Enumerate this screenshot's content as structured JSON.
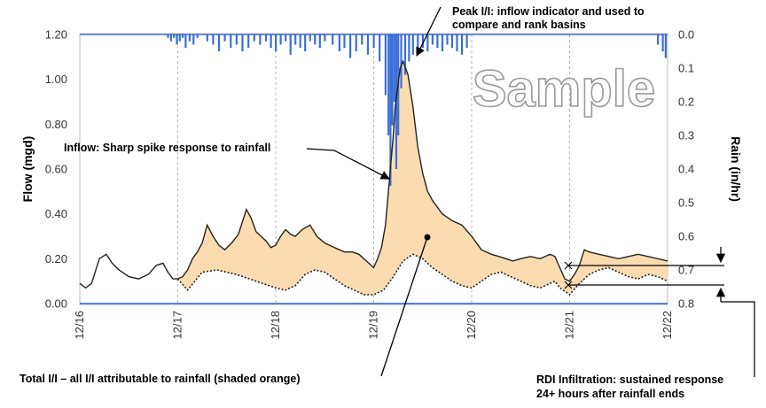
{
  "chart_data": {
    "type": "line",
    "xlabel": "",
    "ylabel": "Flow (mgd)",
    "y2label": "Rain (in/hr)",
    "x_ticks": [
      "12/16",
      "12/17",
      "12/18",
      "12/19",
      "12/20",
      "12/21",
      "12/22"
    ],
    "xlim_days": [
      0,
      6
    ],
    "ylim": [
      0,
      1.2
    ],
    "y_ticks": [
      "0.00",
      "0.20",
      "0.40",
      "0.60",
      "0.80",
      "1.00",
      "1.20"
    ],
    "y2lim": [
      0.8,
      0.0
    ],
    "y2_ticks": [
      "0.0",
      "0.1",
      "0.2",
      "0.3",
      "0.4",
      "0.5",
      "0.6",
      "0.7",
      "0.8"
    ],
    "grid": "vertical dashed",
    "series": [
      {
        "key": "observed",
        "color": "#222222",
        "style": "solid",
        "x": [
          0,
          0.06,
          0.12,
          0.2,
          0.27,
          0.3,
          0.33,
          0.4,
          0.5,
          0.6,
          0.7,
          0.78,
          0.85,
          0.9,
          0.95,
          1.0,
          1.05,
          1.1,
          1.15,
          1.2,
          1.25,
          1.3,
          1.36,
          1.42,
          1.48,
          1.55,
          1.62,
          1.7,
          1.75,
          1.8,
          1.85,
          1.9,
          1.95,
          2.0,
          2.05,
          2.1,
          2.15,
          2.2,
          2.27,
          2.35,
          2.42,
          2.5,
          2.6,
          2.7,
          2.78,
          2.85,
          2.9,
          2.95,
          3.0,
          3.04,
          3.08,
          3.12,
          3.14,
          3.17,
          3.2,
          3.22,
          3.25,
          3.27,
          3.3,
          3.35,
          3.4,
          3.45,
          3.5,
          3.55,
          3.6,
          3.7,
          3.8,
          3.9,
          4.0,
          4.1,
          4.2,
          4.28,
          4.35,
          4.42,
          4.5,
          4.6,
          4.7,
          4.8,
          4.85,
          4.9,
          4.95,
          5.0,
          5.05,
          5.1,
          5.15,
          5.2,
          5.3,
          5.4,
          5.5,
          5.6,
          5.7,
          5.8,
          5.9,
          6.0
        ],
        "values": [
          0.09,
          0.07,
          0.09,
          0.2,
          0.22,
          0.2,
          0.18,
          0.15,
          0.12,
          0.11,
          0.13,
          0.17,
          0.18,
          0.14,
          0.11,
          0.11,
          0.12,
          0.15,
          0.2,
          0.23,
          0.27,
          0.35,
          0.3,
          0.26,
          0.24,
          0.27,
          0.31,
          0.42,
          0.38,
          0.32,
          0.3,
          0.28,
          0.25,
          0.26,
          0.3,
          0.33,
          0.31,
          0.3,
          0.33,
          0.35,
          0.3,
          0.27,
          0.25,
          0.23,
          0.23,
          0.22,
          0.2,
          0.18,
          0.16,
          0.2,
          0.25,
          0.35,
          0.45,
          0.6,
          0.75,
          0.88,
          0.98,
          1.05,
          1.08,
          1.02,
          0.88,
          0.7,
          0.58,
          0.5,
          0.46,
          0.4,
          0.37,
          0.35,
          0.3,
          0.24,
          0.22,
          0.21,
          0.2,
          0.19,
          0.2,
          0.21,
          0.2,
          0.22,
          0.21,
          0.16,
          0.11,
          0.1,
          0.13,
          0.17,
          0.24,
          0.23,
          0.22,
          0.21,
          0.2,
          0.21,
          0.22,
          0.21,
          0.2,
          0.19
        ]
      },
      {
        "key": "baseline",
        "color": "#222222",
        "style": "dotted",
        "x": [
          1.0,
          1.1,
          1.25,
          1.4,
          1.6,
          1.8,
          2.0,
          2.1,
          2.2,
          2.3,
          2.4,
          2.5,
          2.6,
          2.7,
          2.8,
          2.9,
          3.0,
          3.1,
          3.2,
          3.3,
          3.4,
          3.5,
          3.6,
          3.7,
          3.8,
          3.9,
          4.0,
          4.1,
          4.2,
          4.3,
          4.4,
          4.5,
          4.6,
          4.7,
          4.8,
          4.85,
          4.9,
          5.0,
          5.1,
          5.2,
          5.3,
          5.4,
          5.5,
          5.6,
          5.7,
          5.8,
          5.9,
          6.0
        ],
        "values": [
          0.11,
          0.06,
          0.14,
          0.15,
          0.13,
          0.1,
          0.07,
          0.06,
          0.08,
          0.13,
          0.15,
          0.14,
          0.11,
          0.08,
          0.06,
          0.04,
          0.04,
          0.06,
          0.12,
          0.19,
          0.22,
          0.2,
          0.16,
          0.13,
          0.1,
          0.08,
          0.07,
          0.1,
          0.13,
          0.14,
          0.12,
          0.1,
          0.08,
          0.07,
          0.09,
          0.1,
          0.07,
          0.04,
          0.09,
          0.13,
          0.15,
          0.16,
          0.14,
          0.12,
          0.11,
          0.13,
          0.12,
          0.1
        ]
      }
    ],
    "rain": {
      "color": "#3b6fd8",
      "x": [
        0.9,
        0.93,
        0.96,
        0.99,
        1.02,
        1.05,
        1.08,
        1.12,
        1.16,
        1.2,
        1.3,
        1.36,
        1.42,
        1.48,
        1.54,
        1.6,
        1.66,
        1.72,
        1.78,
        1.84,
        1.9,
        1.95,
        2.0,
        2.05,
        2.1,
        2.15,
        2.2,
        2.25,
        2.3,
        2.35,
        2.4,
        2.45,
        2.5,
        2.58,
        2.65,
        2.7,
        2.76,
        2.82,
        2.88,
        2.94,
        3.0,
        3.06,
        3.12,
        3.15,
        3.17,
        3.19,
        3.21,
        3.23,
        3.25,
        3.28,
        3.32,
        3.36,
        3.4,
        3.45,
        3.5,
        3.55,
        3.6,
        3.65,
        3.7,
        3.75,
        3.8,
        3.85,
        3.9,
        3.95,
        5.9,
        5.95,
        5.98
      ],
      "values": [
        0.01,
        0.02,
        0.01,
        0.03,
        0.02,
        0.01,
        0.04,
        0.02,
        0.03,
        0.01,
        0.02,
        0.03,
        0.05,
        0.02,
        0.04,
        0.03,
        0.05,
        0.04,
        0.02,
        0.03,
        0.02,
        0.04,
        0.05,
        0.03,
        0.02,
        0.06,
        0.03,
        0.04,
        0.05,
        0.02,
        0.03,
        0.04,
        0.02,
        0.03,
        0.05,
        0.04,
        0.07,
        0.05,
        0.03,
        0.06,
        0.04,
        0.08,
        0.18,
        0.3,
        0.45,
        0.27,
        0.2,
        0.4,
        0.3,
        0.16,
        0.12,
        0.08,
        0.06,
        0.05,
        0.04,
        0.05,
        0.03,
        0.04,
        0.05,
        0.03,
        0.04,
        0.05,
        0.06,
        0.04,
        0.03,
        0.05,
        0.07
      ]
    },
    "annotations": [
      "Peak I/I: inflow indicator and used to",
      "compare and rank basins",
      "Inflow: Sharp spike response to rainfall",
      "Total I/I – all I/I attributable to rainfall (shaded orange)",
      "RDI Infiltration: sustained response",
      "24+ hours after rainfall ends"
    ],
    "watermark": "Sample",
    "fill_color": "#fbdcb0"
  }
}
